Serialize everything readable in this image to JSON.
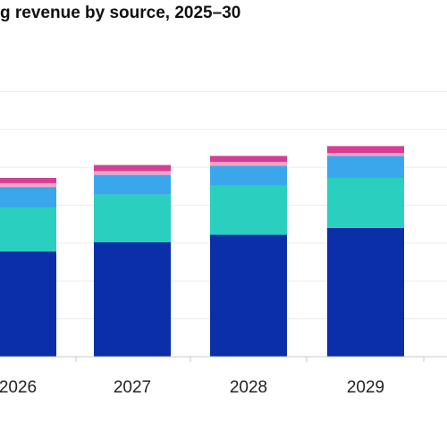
{
  "chart_data": {
    "type": "bar",
    "stacked": true,
    "title": "g revenue by source, 2025–30",
    "xlabel": "",
    "ylabel": "",
    "categories": [
      "2026",
      "2027",
      "2028",
      "2029"
    ],
    "series": [
      {
        "color": "#0a2fa8",
        "values": [
          139,
          151,
          161,
          170
        ]
      },
      {
        "color": "#2bcfbf",
        "values": [
          58,
          63,
          65,
          66
        ]
      },
      {
        "color": "#3aa7ec",
        "values": [
          27,
          26,
          26,
          29
        ]
      },
      {
        "color": "#f1a3c3",
        "values": [
          5,
          5,
          5,
          4
        ]
      },
      {
        "color": "#d63d95",
        "values": [
          7,
          8,
          8,
          9
        ]
      }
    ],
    "ylim": [
      0,
      400
    ],
    "grid": true,
    "legend": "none"
  }
}
